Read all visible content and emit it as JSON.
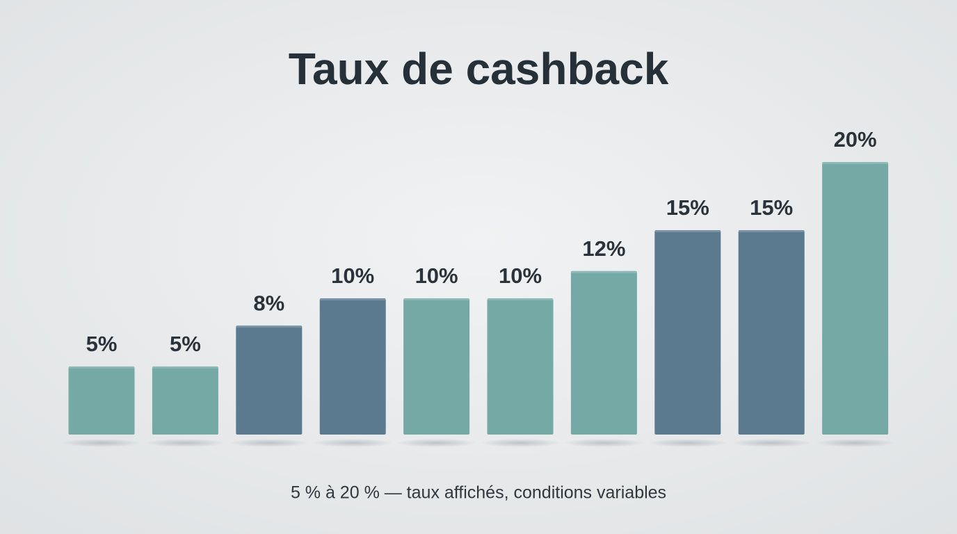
{
  "chart_data": {
    "type": "bar",
    "title": "Taux de cashback",
    "subtitle": "5 % à 20 % — taux affichés, conditions variables",
    "values": [
      5,
      5,
      8,
      10,
      10,
      10,
      12,
      15,
      15,
      20
    ],
    "value_labels": [
      "5%",
      "5%",
      "8%",
      "10%",
      "10%",
      "10%",
      "12%",
      "15%",
      "15%",
      "20%"
    ],
    "colors": [
      "#74a9a6",
      "#74a9a6",
      "#5b7a90",
      "#5b7a90",
      "#74a9a6",
      "#74a9a6",
      "#74a9a6",
      "#5b7a90",
      "#5b7a90",
      "#74a9a6"
    ]
  }
}
